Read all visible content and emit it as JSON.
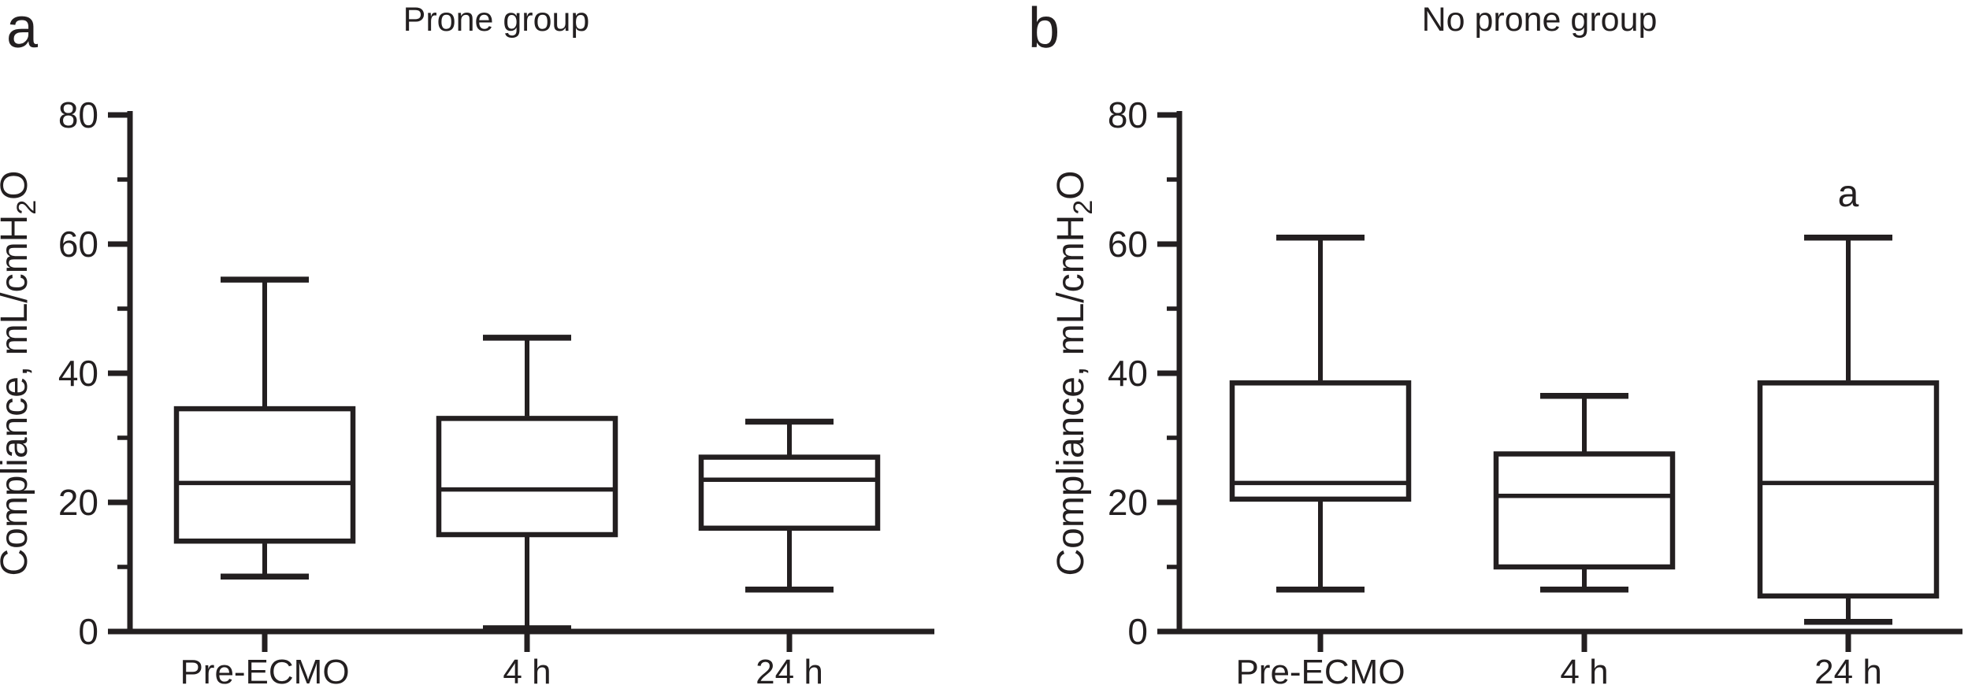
{
  "figure": {
    "background": "#ffffff",
    "ink": "#231f20"
  },
  "chart_data": [
    {
      "type": "box",
      "panel_letter": "a",
      "title": "Prone group",
      "xlabel": "",
      "ylabel": "Compliance, mL/cmH2O",
      "ylabel_parts": {
        "prefix": "Compliance, mL/cmH",
        "sub": "2",
        "suffix": "O"
      },
      "ylim": [
        0,
        80
      ],
      "ytick_major": [
        0,
        20,
        40,
        60,
        80
      ],
      "ytick_minor": [
        10,
        30,
        50,
        70
      ],
      "grid": "off",
      "categories": [
        "Pre-ECMO",
        "4 h",
        "24 h"
      ],
      "series": [
        {
          "category": "Pre-ECMO",
          "whisker_low": 8.5,
          "q1": 14,
          "median": 23,
          "q3": 34.5,
          "whisker_high": 54.5,
          "annotation": ""
        },
        {
          "category": "4 h",
          "whisker_low": 0.5,
          "q1": 15,
          "median": 22,
          "q3": 33,
          "whisker_high": 45.5,
          "annotation": ""
        },
        {
          "category": "24 h",
          "whisker_low": 6.5,
          "q1": 16,
          "median": 23.5,
          "q3": 27,
          "whisker_high": 32.5,
          "annotation": ""
        }
      ]
    },
    {
      "type": "box",
      "panel_letter": "b",
      "title": "No prone group",
      "xlabel": "",
      "ylabel": "Compliance, mL/cmH2O",
      "ylabel_parts": {
        "prefix": "Compliance, mL/cmH",
        "sub": "2",
        "suffix": "O"
      },
      "ylim": [
        0,
        80
      ],
      "ytick_major": [
        0,
        20,
        40,
        60,
        80
      ],
      "ytick_minor": [
        10,
        30,
        50,
        70
      ],
      "grid": "off",
      "categories": [
        "Pre-ECMO",
        "4 h",
        "24 h"
      ],
      "series": [
        {
          "category": "Pre-ECMO",
          "whisker_low": 6.5,
          "q1": 20.5,
          "median": 23,
          "q3": 38.5,
          "whisker_high": 61,
          "annotation": ""
        },
        {
          "category": "4 h",
          "whisker_low": 6.5,
          "q1": 10,
          "median": 21,
          "q3": 27.5,
          "whisker_high": 36.5,
          "annotation": ""
        },
        {
          "category": "24 h",
          "whisker_low": 1.5,
          "q1": 5.5,
          "median": 23,
          "q3": 38.5,
          "whisker_high": 61,
          "annotation": "a"
        }
      ]
    }
  ]
}
